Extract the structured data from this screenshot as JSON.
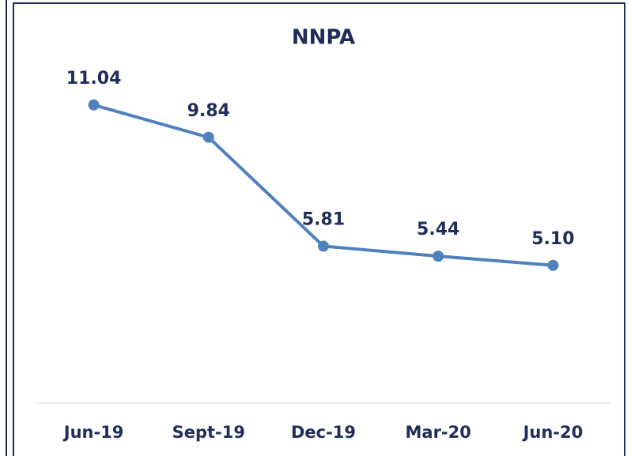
{
  "chart_data": {
    "type": "line",
    "title": "NNPA",
    "categories": [
      "Jun-19",
      "Sept-19",
      "Dec-19",
      "Mar-20",
      "Jun-20"
    ],
    "series": [
      {
        "name": "NNPA",
        "color": "#4f81bd",
        "values": [
          11.04,
          9.84,
          5.81,
          5.44,
          5.1
        ],
        "value_labels": [
          "11.04",
          "9.84",
          "5.81",
          "5.44",
          "5.10"
        ]
      }
    ],
    "ylim": [
      0,
      12
    ]
  }
}
